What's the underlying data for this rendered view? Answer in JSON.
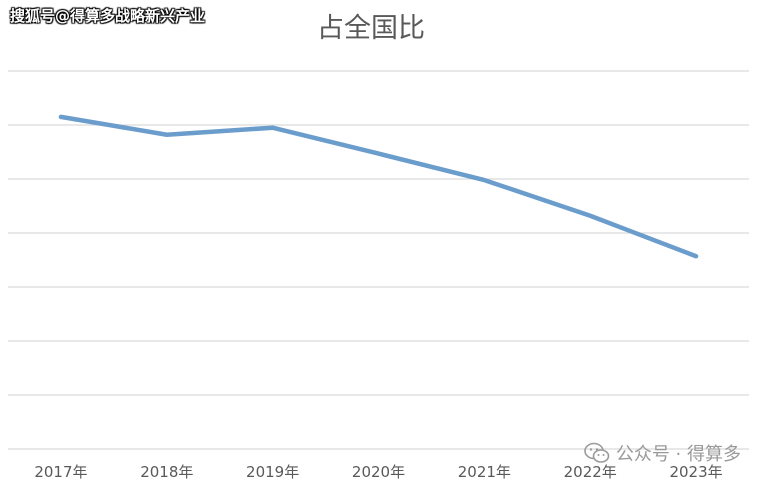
{
  "watermark_top": "搜狐号@得算多战略新兴产业",
  "watermark_bottom": "公众号 · 得算多",
  "colors": {
    "line": "#6a9ccc",
    "grid": "#d9d9d9",
    "text": "#595959"
  },
  "chart_data": {
    "type": "line",
    "title": "占全国比",
    "categories": [
      "2017年",
      "2018年",
      "2019年",
      "2020年",
      "2021年",
      "2022年",
      "2023年"
    ],
    "series": [
      {
        "values": [
          6.15,
          5.82,
          5.95,
          5.47,
          4.98,
          4.32,
          3.57
        ]
      }
    ],
    "ylim": [
      0,
      7
    ],
    "grid": true,
    "legend": "none"
  }
}
